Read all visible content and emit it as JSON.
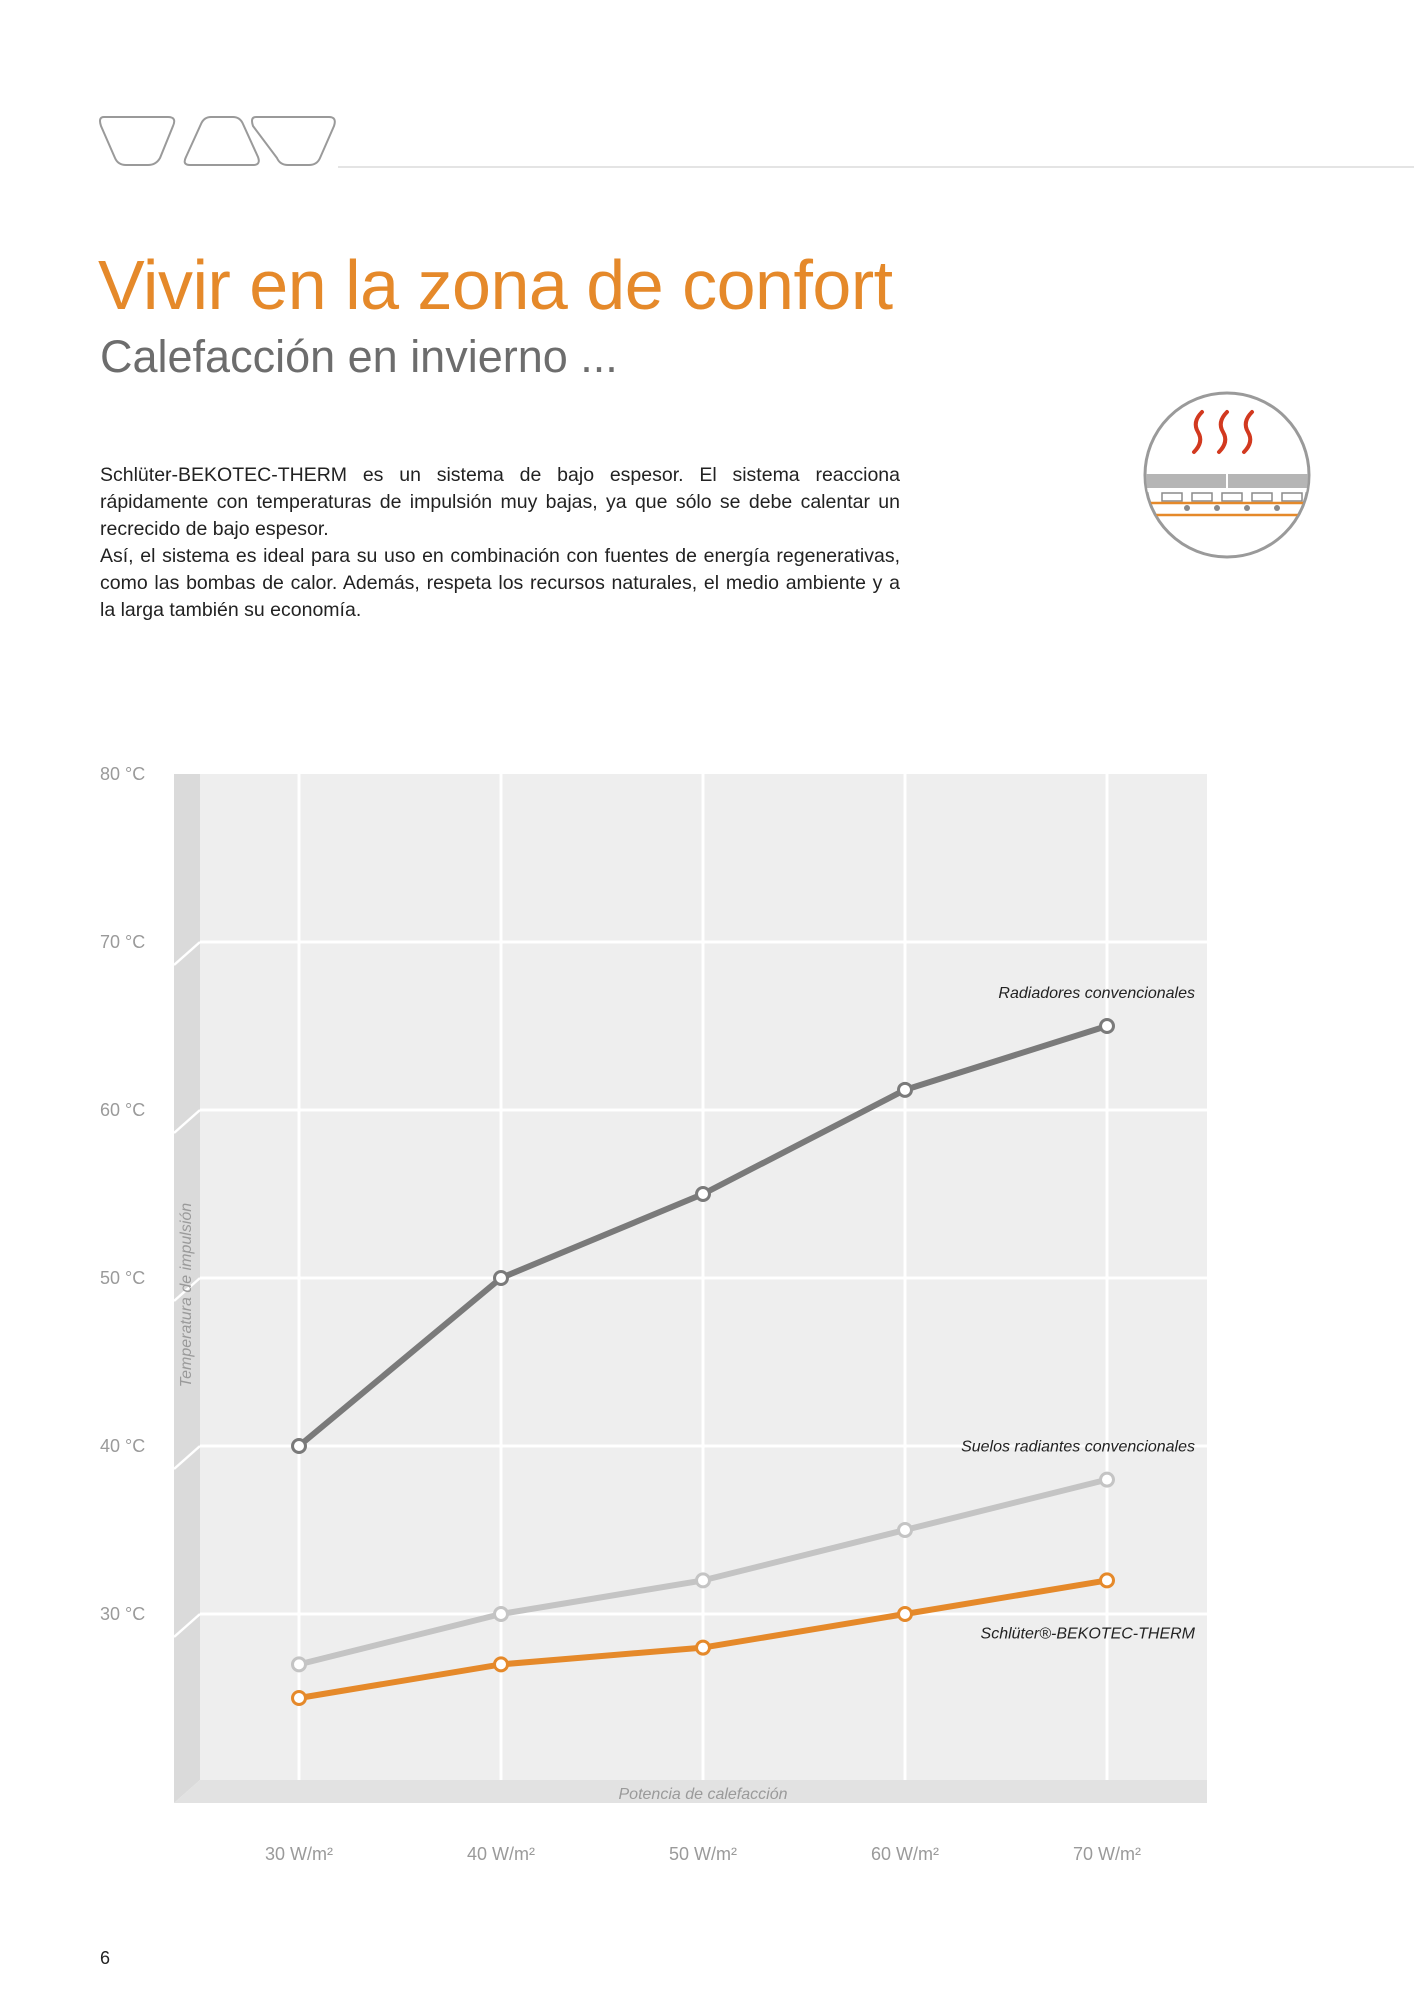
{
  "page": {
    "title": "Vivir en la zona de confort",
    "subtitle": "Calefacción en invierno ...",
    "paragraphs": [
      "Schlüter-BEKOTEC-THERM es un sistema de bajo espesor. El sistema reacciona rápidamente con temperaturas de impulsión muy bajas, ya que sólo se debe calentar un recrecido de bajo espesor.",
      "Así, el sistema es ideal para su uso en combinación con fuentes de energía regenerativas, como las bombas de calor. Además, respeta los recursos naturales, el medio ambiente y a la larga también su economía."
    ],
    "page_number": "6"
  },
  "colors": {
    "accent": "#e5892a",
    "heat_waves": "#d2391f",
    "grey_text": "#6d6d6d"
  },
  "icons": {
    "header": "three-tab-outlines",
    "illustration": "underfloor-heating-icon"
  },
  "chart_data": {
    "type": "line",
    "title": "",
    "xlabel": "Potencia de calefacción",
    "ylabel": "Temperatura de impulsión",
    "categories": [
      "30 W/m²",
      "40 W/m²",
      "50 W/m²",
      "60 W/m²",
      "70 W/m²"
    ],
    "y_tick_labels": [
      "30 °C",
      "40 °C",
      "50 °C",
      "60 °C",
      "70 °C",
      "80 °C"
    ],
    "y_ticks": [
      30,
      40,
      50,
      60,
      70,
      80
    ],
    "ylim": [
      20,
      80
    ],
    "grid": true,
    "series": [
      {
        "name": "Radiadores convencionales",
        "values": [
          40,
          50,
          55,
          61.2,
          65
        ],
        "color": "#7a7a7a"
      },
      {
        "name": "Suelos radiantes convencionales",
        "values": [
          27,
          30,
          32,
          35,
          38
        ],
        "color": "#c4c4c4"
      },
      {
        "name": "Schlüter®-BEKOTEC-THERM",
        "values": [
          25,
          27,
          28,
          30,
          32
        ],
        "color": "#e5892a"
      }
    ]
  }
}
